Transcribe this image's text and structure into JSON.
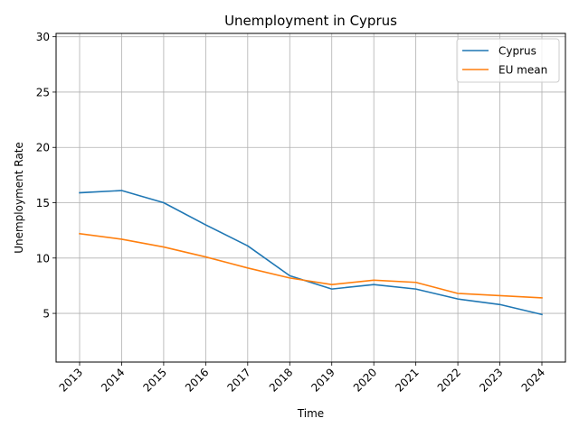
{
  "chart_data": {
    "type": "line",
    "title": "Unemployment in Cyprus",
    "xlabel": "Time",
    "ylabel": "Unemployment Rate",
    "x": [
      "2013",
      "2014",
      "2015",
      "2016",
      "2017",
      "2018",
      "2019",
      "2020",
      "2021",
      "2022",
      "2023",
      "2024"
    ],
    "yticks": [
      5,
      10,
      15,
      20,
      25,
      30
    ],
    "ylim": [
      0.6,
      30.3
    ],
    "grid": true,
    "legend_position": "top-right",
    "series": [
      {
        "name": "Cyprus",
        "color": "#1f77b4",
        "values": [
          15.9,
          16.1,
          15.0,
          13.0,
          11.1,
          8.4,
          7.2,
          7.6,
          7.2,
          6.3,
          5.8,
          4.9
        ]
      },
      {
        "name": "EU mean",
        "color": "#ff7f0e",
        "values": [
          12.2,
          11.7,
          11.0,
          10.1,
          9.1,
          8.2,
          7.6,
          8.0,
          7.8,
          6.8,
          6.6,
          6.4
        ]
      }
    ]
  }
}
